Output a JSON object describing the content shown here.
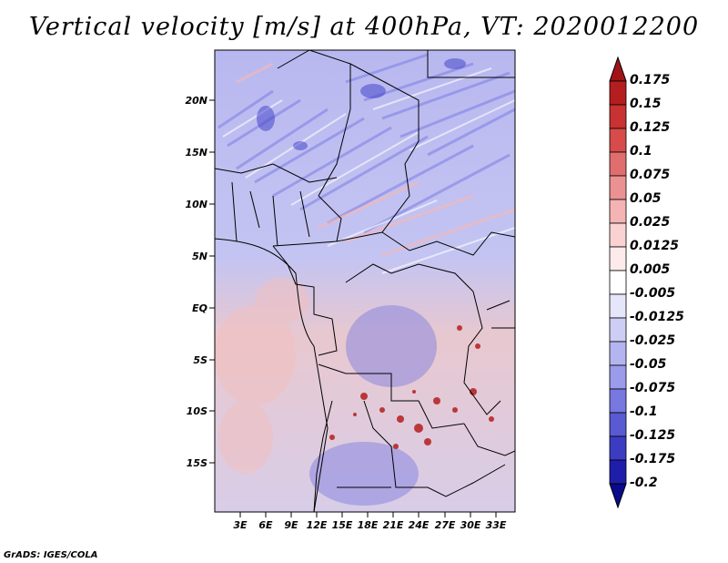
{
  "title": "Vertical velocity [m/s] at 400hPa, VT: 2020012200",
  "credit": "GrADS: IGES/COLA",
  "map": {
    "lat_labels": [
      "20N",
      "15N",
      "10N",
      "5N",
      "EQ",
      "5S",
      "10S",
      "15S"
    ],
    "lon_labels": [
      "3E",
      "6E",
      "9E",
      "12E",
      "15E",
      "18E",
      "21E",
      "24E",
      "27E",
      "30E",
      "33E"
    ]
  },
  "colorbar": {
    "labels": [
      "0.175",
      "0.15",
      "0.125",
      "0.1",
      "0.075",
      "0.05",
      "0.025",
      "0.0125",
      "0.005",
      "-0.005",
      "-0.0125",
      "-0.025",
      "-0.05",
      "-0.075",
      "-0.1",
      "-0.125",
      "-0.175",
      "-0.2"
    ],
    "colors": [
      "#a01418",
      "#b41e1e",
      "#c83232",
      "#d74b4b",
      "#e16e6e",
      "#eb9191",
      "#f4b4b4",
      "#fad2d2",
      "#fdebeb",
      "#ffffff",
      "#e6e6fa",
      "#cdcdf5",
      "#b4b4f0",
      "#9b9beb",
      "#7878e1",
      "#5a5ad2",
      "#3c3cc3",
      "#1e1eaa",
      "#0a0a8c"
    ]
  }
}
